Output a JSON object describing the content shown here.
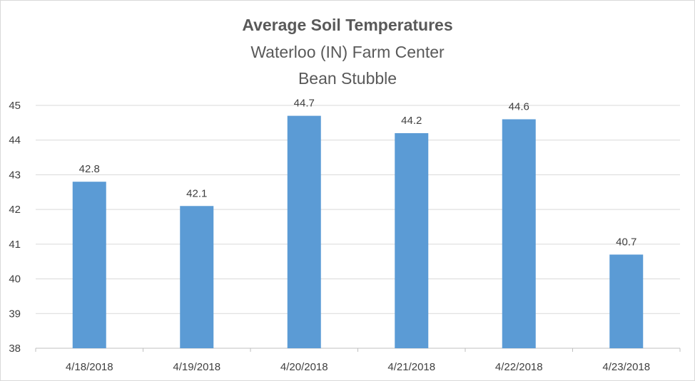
{
  "chart_data": {
    "type": "bar",
    "title": "Average Soil Temperatures",
    "subtitle_lines": [
      "Waterloo (IN) Farm Center",
      "Bean Stubble"
    ],
    "categories": [
      "4/18/2018",
      "4/19/2018",
      "4/20/2018",
      "4/21/2018",
      "4/22/2018",
      "4/23/2018"
    ],
    "values": [
      42.8,
      42.1,
      44.7,
      44.2,
      44.6,
      40.7
    ],
    "data_labels": [
      "42.8",
      "42.1",
      "44.7",
      "44.2",
      "44.6",
      "40.7"
    ],
    "ylim": [
      38,
      45
    ],
    "yticks": [
      38,
      39,
      40,
      41,
      42,
      43,
      44,
      45
    ],
    "grid": true,
    "legend": "none",
    "bar_color": "#5b9bd5",
    "grid_color": "#d9d9d9",
    "axis_color": "#bfbfbf",
    "text_color": "#404040"
  }
}
